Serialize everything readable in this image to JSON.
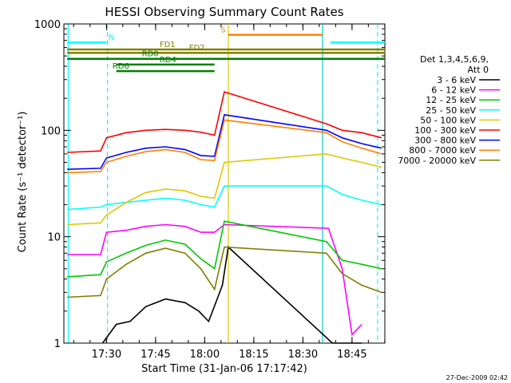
{
  "chart_data": {
    "type": "line",
    "title": "HESSI Observing Summary Count Rates",
    "xlabel": "Start Time (31-Jan-06 17:17:42)",
    "ylabel": "Count Rate (s⁻¹ detector⁻¹)",
    "yscale": "log",
    "ylim": [
      1,
      1000
    ],
    "xlim_minutes": [
      17.283,
      18.917
    ],
    "x_unit": "hours",
    "x_ticks": [
      {
        "value": 17.5,
        "label": "17:30"
      },
      {
        "value": 17.75,
        "label": "17:45"
      },
      {
        "value": 18.0,
        "label": "18:00"
      },
      {
        "value": 18.25,
        "label": "18:15"
      },
      {
        "value": 18.5,
        "label": "18:30"
      },
      {
        "value": 18.75,
        "label": "18:45"
      }
    ],
    "y_ticks": [
      {
        "value": 1,
        "label": "1"
      },
      {
        "value": 10,
        "label": "10"
      },
      {
        "value": 100,
        "label": "100"
      },
      {
        "value": 1000,
        "label": "1000"
      }
    ],
    "grid": false,
    "legend_title": [
      "Det 1,3,4,5,6,9,",
      "Att 0"
    ],
    "legend_position": "right",
    "series": [
      {
        "name": "3 - 6 keV",
        "color": "#000000",
        "x": [
          17.48,
          17.55,
          17.62,
          17.7,
          17.8,
          17.9,
          17.97,
          18.02,
          18.06,
          18.09,
          18.12,
          18.65,
          18.67,
          18.7,
          18.75,
          18.8
        ],
        "y": [
          1,
          1.5,
          1.6,
          2.2,
          2.6,
          2.4,
          2.0,
          1.6,
          2.5,
          3.5,
          8,
          1,
          1,
          1,
          1,
          1
        ]
      },
      {
        "name": "6 - 12 keV",
        "color": "#ff00ff",
        "x": [
          17.3,
          17.47,
          17.5,
          17.6,
          17.7,
          17.8,
          17.9,
          17.98,
          18.05,
          18.1,
          18.63,
          18.7,
          18.75,
          18.8
        ],
        "y": [
          6.8,
          6.8,
          11,
          11.5,
          12.5,
          13,
          12.5,
          11,
          11,
          13,
          12,
          5,
          1.2,
          1.5
        ]
      },
      {
        "name": "12 - 25 keV",
        "color": "#00c800",
        "x": [
          17.3,
          17.47,
          17.5,
          17.6,
          17.7,
          17.8,
          17.9,
          17.98,
          18.05,
          18.1,
          18.62,
          18.7,
          18.8,
          18.9
        ],
        "y": [
          4.2,
          4.4,
          5.8,
          7.0,
          8.3,
          9.3,
          8.5,
          6.2,
          5.0,
          14,
          9,
          6,
          5.5,
          5
        ]
      },
      {
        "name": "25 - 50 keV",
        "color": "#00ffff",
        "x": [
          17.3,
          17.47,
          17.5,
          17.6,
          17.7,
          17.8,
          17.9,
          17.98,
          18.05,
          18.1,
          18.62,
          18.7,
          18.8,
          18.9
        ],
        "y": [
          18,
          19,
          20,
          21,
          22,
          23,
          22,
          20,
          19,
          30,
          30,
          25,
          22,
          20
        ]
      },
      {
        "name": "50 - 100 keV",
        "color": "#dcc800",
        "x": [
          17.3,
          17.47,
          17.5,
          17.6,
          17.7,
          17.8,
          17.9,
          17.98,
          18.05,
          18.1,
          18.62,
          18.7,
          18.8,
          18.9
        ],
        "y": [
          13,
          13.5,
          16,
          21,
          26,
          28,
          27,
          24,
          23,
          50,
          60,
          55,
          50,
          45
        ]
      },
      {
        "name": "100 - 300 keV",
        "color": "#ff0000",
        "x": [
          17.3,
          17.47,
          17.5,
          17.6,
          17.7,
          17.8,
          17.9,
          17.98,
          18.05,
          18.1,
          18.62,
          18.7,
          18.8,
          18.9
        ],
        "y": [
          62,
          64,
          85,
          95,
          100,
          102,
          100,
          96,
          90,
          230,
          115,
          100,
          95,
          85
        ]
      },
      {
        "name": "300 - 800 keV",
        "color": "#0000ff",
        "x": [
          17.3,
          17.47,
          17.5,
          17.6,
          17.7,
          17.8,
          17.9,
          17.98,
          18.05,
          18.1,
          18.62,
          18.7,
          18.8,
          18.9
        ],
        "y": [
          43,
          44,
          55,
          62,
          68,
          70,
          66,
          58,
          57,
          140,
          100,
          85,
          75,
          68
        ]
      },
      {
        "name": "800 - 7000 keV",
        "color": "#ff8000",
        "x": [
          17.3,
          17.47,
          17.5,
          17.6,
          17.7,
          17.8,
          17.9,
          17.98,
          18.05,
          18.1,
          18.62,
          18.7,
          18.8,
          18.9
        ],
        "y": [
          40,
          41,
          50,
          57,
          63,
          66,
          62,
          53,
          52,
          125,
          95,
          78,
          68,
          60
        ]
      },
      {
        "name": "7000 - 20000 keV",
        "color": "#808000",
        "x": [
          17.3,
          17.47,
          17.5,
          17.6,
          17.7,
          17.8,
          17.9,
          17.98,
          18.05,
          18.1,
          18.62,
          18.7,
          18.8,
          18.9
        ],
        "y": [
          2.7,
          2.8,
          4.0,
          5.5,
          7.0,
          7.8,
          7.0,
          5.0,
          3.2,
          8,
          7,
          4.5,
          3.5,
          3
        ]
      }
    ],
    "flag_bars": [
      {
        "label": "N",
        "color": "#00ffff",
        "x0": 17.3,
        "x1": 18.917,
        "y": 670,
        "break": [
          17.5,
          18.64
        ],
        "label_x": 17.51
      },
      {
        "label": "S",
        "color": "#ff8000",
        "x0": 18.12,
        "x1": 18.6,
        "y": 790,
        "label_x": 18.08
      },
      {
        "label": "FD1",
        "color": "#808000",
        "x0": 17.3,
        "x1": 18.917,
        "y": 575,
        "label_x": 17.77
      },
      {
        "label": "FD2",
        "color": "#808000",
        "x0": 17.3,
        "x1": 18.917,
        "y": 535,
        "label_x": 17.92
      },
      {
        "label": "RD0",
        "color": "#008000",
        "x0": 17.3,
        "x1": 18.917,
        "y": 470,
        "label_x": 17.68
      },
      {
        "label": "RD4",
        "color": "#008000",
        "x0": 17.55,
        "x1": 18.05,
        "y": 415,
        "label_x": 17.77
      },
      {
        "label": "RD6",
        "color": "#008000",
        "x0": 17.55,
        "x1": 18.05,
        "y": 360,
        "label_x": 17.53
      }
    ],
    "vertical_lines": [
      {
        "x": 17.305,
        "color": "#00ffff",
        "style": "solid"
      },
      {
        "x": 17.505,
        "color": "#00ffff",
        "style": "dashed"
      },
      {
        "x": 18.12,
        "color": "#dcc800",
        "style": "solid"
      },
      {
        "x": 18.6,
        "color": "#00c8c8",
        "style": "solid"
      },
      {
        "x": 18.88,
        "color": "#00ffff",
        "style": "dashed"
      }
    ],
    "footer_date": "27-Dec-2009 02:42"
  }
}
